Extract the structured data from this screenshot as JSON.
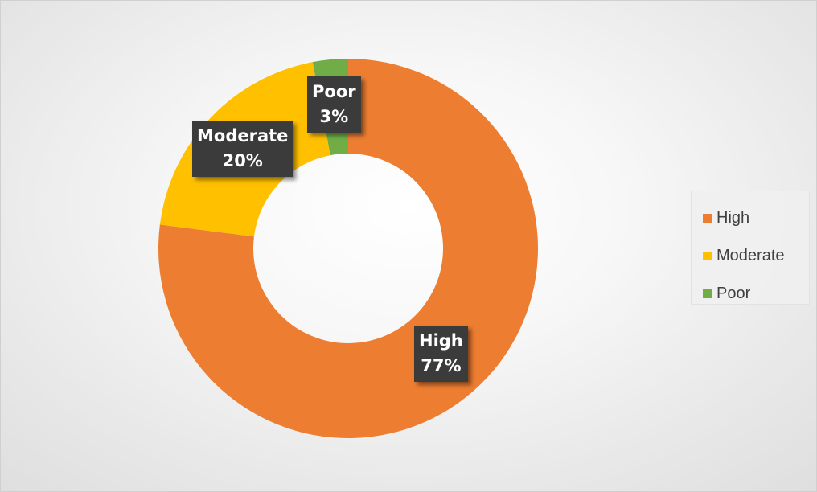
{
  "chart_data": {
    "type": "pie",
    "variant": "donut",
    "title": "",
    "categories": [
      "High",
      "Moderate",
      "Poor"
    ],
    "values": [
      77,
      20,
      3
    ],
    "unit": "%",
    "colors": [
      "#ED7D31",
      "#FFC000",
      "#70AD47"
    ],
    "data_labels": [
      {
        "category": "High",
        "value": "77%"
      },
      {
        "category": "Moderate",
        "value": "20%"
      },
      {
        "category": "Poor",
        "value": "3%"
      }
    ],
    "legend": {
      "position": "right",
      "entries": [
        "High",
        "Moderate",
        "Poor"
      ]
    }
  }
}
